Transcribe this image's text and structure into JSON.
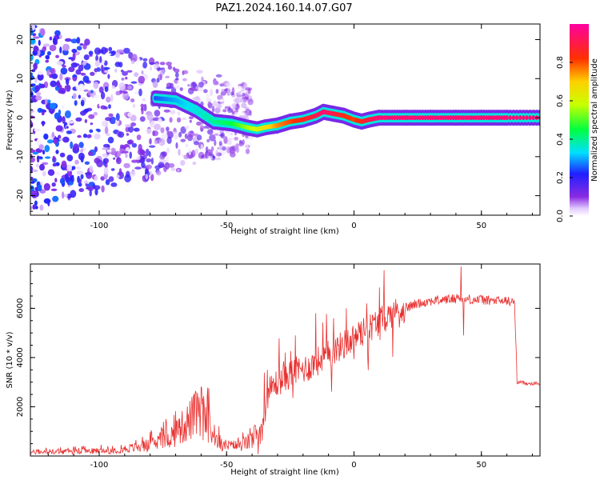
{
  "title": "PAZ1.2024.160.14.07.G07",
  "colors": {
    "snr_line": "#e8302f",
    "frame": "#000000",
    "background": "#ffffff"
  },
  "chart_data": [
    {
      "type": "heatmap",
      "name": "spectrogram",
      "xlabel": "Height of straight line (km)",
      "ylabel": "Frequency (Hz)",
      "xlim": [
        -127,
        73
      ],
      "ylim": [
        -25,
        24
      ],
      "xticks": [
        -100,
        -50,
        0,
        50
      ],
      "xtick_labels": [
        "-100",
        "-50",
        "0",
        "50"
      ],
      "yticks": [
        -20,
        -10,
        0,
        10,
        20
      ],
      "ytick_labels": [
        "-20",
        "-10",
        "0",
        "10",
        "20"
      ],
      "colormap": "rainbow (purple → blue → cyan → green → yellow → orange → red → magenta)",
      "ridge": {
        "description": "Frequency of the dominant spectral ridge vs height",
        "x": [
          -78,
          -70,
          -62,
          -55,
          -48,
          -42,
          -38,
          -35,
          -30,
          -25,
          -20,
          -15,
          -12,
          -8,
          -4,
          0,
          3,
          6,
          10,
          20,
          30,
          40,
          50,
          60,
          73
        ],
        "y": [
          5,
          4.5,
          2,
          -1,
          -1.5,
          -2.5,
          -3,
          -2.5,
          -2,
          -1,
          -0.5,
          0.5,
          1.5,
          1,
          0.5,
          -0.5,
          -1,
          -0.5,
          0,
          0,
          0,
          0,
          0,
          0,
          0
        ],
        "amplitude": [
          0.25,
          0.3,
          0.35,
          0.4,
          0.45,
          0.55,
          0.6,
          0.65,
          0.75,
          0.8,
          0.85,
          0.9,
          0.95,
          0.9,
          0.85,
          0.8,
          0.85,
          0.9,
          0.95,
          0.95,
          0.95,
          0.95,
          0.95,
          0.95,
          0.95
        ]
      },
      "noise_region": {
        "x_range": [
          -127,
          -40
        ],
        "frequency_spread_hz": [
          -24,
          24
        ],
        "amplitude_range": [
          0.0,
          0.3
        ]
      },
      "colorbar": {
        "label": "Normalized spectral amplitude",
        "range": [
          0.0,
          1.0
        ],
        "ticks": [
          0.0,
          0.2,
          0.4,
          0.6,
          0.8
        ],
        "tick_labels": [
          "0.0",
          "0.2",
          "0.4",
          "0.6",
          "0.8"
        ]
      }
    },
    {
      "type": "line",
      "name": "snr",
      "xlabel": "Height of straight line (km)",
      "ylabel": "SNR (10 * v/v)",
      "xlim": [
        -127,
        73
      ],
      "ylim": [
        0,
        7800
      ],
      "xticks": [
        -100,
        -50,
        0,
        50
      ],
      "xtick_labels": [
        "-100",
        "-50",
        "0",
        "50"
      ],
      "yticks": [
        2000,
        4000,
        6000
      ],
      "ytick_labels": [
        "2000",
        "4000",
        "6000"
      ],
      "series": [
        {
          "color": "#e8302f",
          "envelope": {
            "x": [
              -127,
              -110,
              -95,
              -85,
              -78,
              -70,
              -65,
              -62,
              -58,
              -55,
              -52,
              -48,
              -44,
              -40,
              -36,
              -34,
              -32,
              -30,
              -27,
              -24,
              -21,
              -18,
              -15,
              -12,
              -9,
              -6,
              -3,
              0,
              3,
              6,
              10,
              15,
              20,
              25,
              30,
              35,
              40,
              42,
              43,
              44,
              46,
              50,
              55,
              60,
              63,
              64,
              65,
              68,
              73
            ],
            "y": [
              150,
              180,
              220,
              350,
              500,
              900,
              1400,
              1700,
              1500,
              800,
              450,
              400,
              450,
              650,
              1200,
              2500,
              2800,
              3000,
              3200,
              3400,
              3500,
              3600,
              3800,
              4000,
              4200,
              4400,
              4600,
              4800,
              5000,
              5200,
              5500,
              5800,
              6000,
              6200,
              6300,
              6350,
              6400,
              6500,
              6200,
              6400,
              6350,
              6350,
              6300,
              6300,
              6250,
              3000,
              3000,
              2950,
              2950
            ]
          },
          "spikes": [
            {
              "x": -60,
              "y": 2800
            },
            {
              "x": -57,
              "y": 2750
            },
            {
              "x": -34,
              "y": 3500
            },
            {
              "x": -27,
              "y": 4200
            },
            {
              "x": -23,
              "y": 4900
            },
            {
              "x": -15,
              "y": 5800
            },
            {
              "x": -8,
              "y": 5600
            },
            {
              "x": -3,
              "y": 6000
            },
            {
              "x": 5,
              "y": 6200
            },
            {
              "x": 42,
              "y": 7700
            },
            {
              "x": 43,
              "y": 4900
            }
          ]
        }
      ]
    }
  ]
}
